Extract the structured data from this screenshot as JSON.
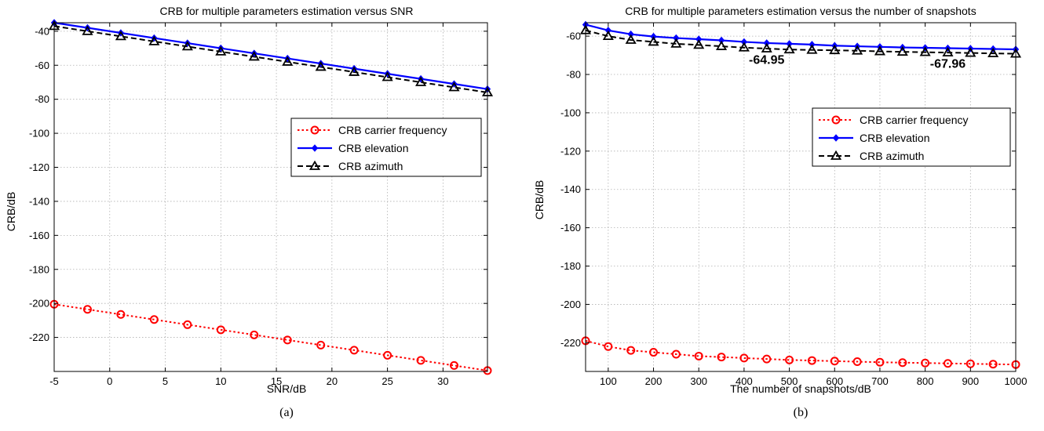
{
  "chart_data": [
    {
      "type": "line",
      "title": "CRB for multiple parameters estimation versus SNR",
      "xlabel": "SNR/dB",
      "ylabel": "CRB/dB",
      "caption": "(a)",
      "xlim": [
        -5,
        34
      ],
      "ylim": [
        -240,
        -35
      ],
      "xticks": [
        -5,
        0,
        5,
        10,
        15,
        20,
        25,
        30
      ],
      "yticks": [
        -40,
        -60,
        -80,
        -100,
        -120,
        -140,
        -160,
        -180,
        -200,
        -220
      ],
      "grid": true,
      "legend_position": "center-right",
      "x": [
        -5,
        -2,
        1,
        4,
        7,
        10,
        13,
        16,
        19,
        22,
        25,
        28,
        31,
        34
      ],
      "series": [
        {
          "name": "CRB carrier frequency",
          "color": "#ff0000",
          "style": "dotted",
          "marker": "circle",
          "values": [
            -200.5,
            -203.5,
            -206.5,
            -209.5,
            -212.5,
            -215.5,
            -218.5,
            -221.5,
            -224.5,
            -227.5,
            -230.5,
            -233.5,
            -236.5,
            -239.5
          ]
        },
        {
          "name": "CRB elevation",
          "color": "#0000ff",
          "style": "solid",
          "marker": "diamond",
          "values": [
            -35,
            -38,
            -41,
            -44,
            -47,
            -50,
            -53,
            -56,
            -59,
            -62,
            -65,
            -68,
            -71,
            -74
          ]
        },
        {
          "name": "CRB azimuth",
          "color": "#000000",
          "style": "dashed",
          "marker": "triangle",
          "values": [
            -37,
            -40,
            -43,
            -46,
            -49,
            -52,
            -55,
            -58,
            -61,
            -64,
            -67,
            -70,
            -73,
            -76
          ]
        }
      ]
    },
    {
      "type": "line",
      "title": "CRB for multiple parameters estimation versus the number of snapshots",
      "xlabel": "The number of snapshots/dB",
      "ylabel": "CRB/dB",
      "caption": "(b)",
      "xlim": [
        50,
        1000
      ],
      "ylim": [
        -235,
        -53
      ],
      "xticks": [
        100,
        200,
        300,
        400,
        500,
        600,
        700,
        800,
        900,
        1000
      ],
      "yticks": [
        -60,
        -80,
        -100,
        -120,
        -140,
        -160,
        -180,
        -200,
        -220
      ],
      "grid": true,
      "legend_position": "center-right",
      "annotations": [
        {
          "text": "-64.95",
          "x": 450,
          "y": -72
        },
        {
          "text": "-67.96",
          "x": 850,
          "y": -74
        }
      ],
      "x": [
        50,
        100,
        150,
        200,
        250,
        300,
        350,
        400,
        450,
        500,
        550,
        600,
        650,
        700,
        750,
        800,
        850,
        900,
        950,
        1000
      ],
      "series": [
        {
          "name": "CRB carrier frequency",
          "color": "#ff0000",
          "style": "dotted",
          "marker": "circle",
          "values": [
            -219,
            -222,
            -224,
            -225,
            -226,
            -227,
            -227.5,
            -228,
            -228.5,
            -229,
            -229.3,
            -229.6,
            -229.9,
            -230.2,
            -230.4,
            -230.6,
            -230.8,
            -231,
            -231.2,
            -231.4
          ]
        },
        {
          "name": "CRB elevation",
          "color": "#0000ff",
          "style": "solid",
          "marker": "diamond",
          "values": [
            -54,
            -57,
            -59,
            -60.2,
            -61,
            -61.6,
            -62.2,
            -63,
            -63.6,
            -64,
            -64.4,
            -64.95,
            -65.3,
            -65.6,
            -65.9,
            -66.1,
            -66.3,
            -66.5,
            -66.7,
            -66.9
          ]
        },
        {
          "name": "CRB azimuth",
          "color": "#000000",
          "style": "dashed",
          "marker": "triangle",
          "values": [
            -57,
            -60,
            -62,
            -63,
            -64,
            -64.6,
            -65.3,
            -66,
            -66.5,
            -67,
            -67.2,
            -67.4,
            -67.6,
            -67.96,
            -68.2,
            -68.4,
            -68.6,
            -68.8,
            -69,
            -69.2
          ]
        }
      ]
    }
  ]
}
